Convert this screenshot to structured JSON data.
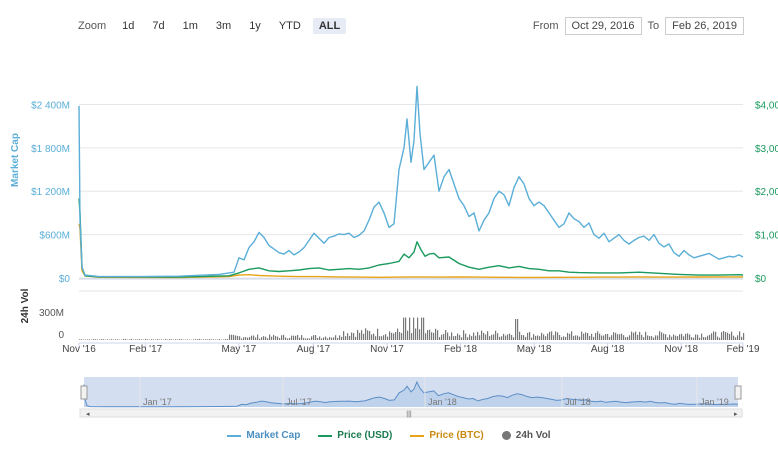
{
  "toolbar": {
    "zoom_label": "Zoom",
    "zoom_buttons": [
      "1d",
      "7d",
      "1m",
      "3m",
      "1y",
      "YTD",
      "ALL"
    ],
    "active": "ALL",
    "from_label": "From",
    "from_value": "Oct 29, 2016",
    "to_label": "To",
    "to_value": "Feb 26, 2019"
  },
  "colors": {
    "market_cap": "#5aaed8",
    "price_usd": "#1a9a5e",
    "price_btc": "#e8a419",
    "volume": "#777777",
    "navigator_fill": "#cfdaf0"
  },
  "chart_data": {
    "type": "line",
    "x_ticks": [
      "Nov '16",
      "Feb '17",
      "May '17",
      "Aug '17",
      "Nov '17",
      "Feb '18",
      "May '18",
      "Aug '18",
      "Nov '18",
      "Feb '19"
    ],
    "left_axis": {
      "label": "Market Cap",
      "ticks": [
        "$2 400M",
        "$1 800M",
        "$1 200M",
        "$600M",
        "$0"
      ],
      "range": [
        0,
        2600
      ]
    },
    "right_axis": {
      "ticks": [
        "$4,00",
        "$3,00",
        "$2,00",
        "$1,00",
        "$0"
      ]
    },
    "volume_axis": {
      "label": "24h Vol",
      "ticks": [
        "300M",
        "0"
      ]
    },
    "navigator_ticks": [
      "Jan '17",
      "Jul '17",
      "Jan '18",
      "Jul '18",
      "Jan '19"
    ],
    "series": [
      {
        "name": "Market Cap",
        "key": "market_cap",
        "points": [
          [
            0,
            2380
          ],
          [
            1,
            800
          ],
          [
            3,
            150
          ],
          [
            6,
            40
          ],
          [
            20,
            20
          ],
          [
            60,
            20
          ],
          [
            100,
            25
          ],
          [
            140,
            50
          ],
          [
            155,
            80
          ],
          [
            160,
            280
          ],
          [
            165,
            250
          ],
          [
            170,
            420
          ],
          [
            175,
            500
          ],
          [
            180,
            630
          ],
          [
            185,
            560
          ],
          [
            190,
            450
          ],
          [
            195,
            400
          ],
          [
            200,
            350
          ],
          [
            205,
            330
          ],
          [
            210,
            380
          ],
          [
            215,
            320
          ],
          [
            220,
            360
          ],
          [
            225,
            420
          ],
          [
            230,
            520
          ],
          [
            235,
            620
          ],
          [
            240,
            550
          ],
          [
            245,
            480
          ],
          [
            250,
            560
          ],
          [
            255,
            580
          ],
          [
            260,
            610
          ],
          [
            265,
            600
          ],
          [
            270,
            620
          ],
          [
            275,
            560
          ],
          [
            280,
            590
          ],
          [
            285,
            650
          ],
          [
            290,
            800
          ],
          [
            295,
            980
          ],
          [
            300,
            1050
          ],
          [
            305,
            900
          ],
          [
            310,
            700
          ],
          [
            315,
            750
          ],
          [
            320,
            1500
          ],
          [
            325,
            1800
          ],
          [
            328,
            2200
          ],
          [
            332,
            1600
          ],
          [
            335,
            1900
          ],
          [
            338,
            2650
          ],
          [
            341,
            2000
          ],
          [
            345,
            1500
          ],
          [
            350,
            1600
          ],
          [
            355,
            1700
          ],
          [
            360,
            1200
          ],
          [
            365,
            1400
          ],
          [
            370,
            1500
          ],
          [
            375,
            1300
          ],
          [
            380,
            1100
          ],
          [
            385,
            1000
          ],
          [
            390,
            850
          ],
          [
            395,
            900
          ],
          [
            400,
            650
          ],
          [
            405,
            800
          ],
          [
            410,
            900
          ],
          [
            415,
            1100
          ],
          [
            420,
            1200
          ],
          [
            425,
            1150
          ],
          [
            430,
            1000
          ],
          [
            435,
            1250
          ],
          [
            440,
            1400
          ],
          [
            445,
            1300
          ],
          [
            450,
            1100
          ],
          [
            455,
            1000
          ],
          [
            460,
            1050
          ],
          [
            465,
            1000
          ],
          [
            470,
            900
          ],
          [
            475,
            800
          ],
          [
            480,
            700
          ],
          [
            485,
            750
          ],
          [
            490,
            900
          ],
          [
            495,
            820
          ],
          [
            500,
            780
          ],
          [
            505,
            700
          ],
          [
            510,
            760
          ],
          [
            515,
            600
          ],
          [
            520,
            550
          ],
          [
            525,
            620
          ],
          [
            530,
            500
          ],
          [
            535,
            550
          ],
          [
            540,
            600
          ],
          [
            545,
            520
          ],
          [
            550,
            470
          ],
          [
            555,
            520
          ],
          [
            560,
            560
          ],
          [
            565,
            580
          ],
          [
            570,
            520
          ],
          [
            575,
            600
          ],
          [
            580,
            480
          ],
          [
            585,
            430
          ],
          [
            590,
            470
          ],
          [
            595,
            350
          ],
          [
            600,
            300
          ],
          [
            605,
            380
          ],
          [
            610,
            320
          ],
          [
            615,
            280
          ],
          [
            620,
            300
          ],
          [
            625,
            320
          ],
          [
            630,
            340
          ],
          [
            635,
            300
          ],
          [
            640,
            260
          ],
          [
            645,
            280
          ],
          [
            650,
            300
          ],
          [
            655,
            290
          ],
          [
            660,
            320
          ],
          [
            664,
            290
          ]
        ]
      },
      {
        "name": "Price (USD)",
        "key": "price_usd",
        "points": [
          [
            0,
            1100
          ],
          [
            1,
            900
          ],
          [
            3,
            150
          ],
          [
            6,
            30
          ],
          [
            20,
            15
          ],
          [
            100,
            12
          ],
          [
            150,
            30
          ],
          [
            160,
            70
          ],
          [
            170,
            120
          ],
          [
            180,
            140
          ],
          [
            190,
            100
          ],
          [
            200,
            90
          ],
          [
            210,
            100
          ],
          [
            220,
            110
          ],
          [
            230,
            130
          ],
          [
            240,
            140
          ],
          [
            250,
            110
          ],
          [
            260,
            120
          ],
          [
            270,
            130
          ],
          [
            280,
            120
          ],
          [
            290,
            140
          ],
          [
            300,
            180
          ],
          [
            310,
            200
          ],
          [
            320,
            230
          ],
          [
            325,
            330
          ],
          [
            330,
            280
          ],
          [
            335,
            360
          ],
          [
            338,
            500
          ],
          [
            342,
            390
          ],
          [
            346,
            300
          ],
          [
            350,
            330
          ],
          [
            355,
            340
          ],
          [
            360,
            280
          ],
          [
            370,
            290
          ],
          [
            380,
            200
          ],
          [
            390,
            150
          ],
          [
            400,
            120
          ],
          [
            410,
            150
          ],
          [
            420,
            170
          ],
          [
            430,
            140
          ],
          [
            440,
            160
          ],
          [
            450,
            130
          ],
          [
            460,
            120
          ],
          [
            470,
            100
          ],
          [
            480,
            100
          ],
          [
            490,
            80
          ],
          [
            500,
            75
          ],
          [
            520,
            70
          ],
          [
            540,
            70
          ],
          [
            560,
            80
          ],
          [
            580,
            65
          ],
          [
            600,
            50
          ],
          [
            620,
            40
          ],
          [
            640,
            40
          ],
          [
            660,
            45
          ],
          [
            664,
            42
          ]
        ]
      },
      {
        "name": "Price (BTC)",
        "key": "price_btc",
        "points": [
          [
            0,
            750
          ],
          [
            1,
            680
          ],
          [
            3,
            100
          ],
          [
            6,
            30
          ],
          [
            20,
            10
          ],
          [
            100,
            5
          ],
          [
            150,
            20
          ],
          [
            160,
            40
          ],
          [
            170,
            45
          ],
          [
            180,
            35
          ],
          [
            190,
            30
          ],
          [
            200,
            25
          ],
          [
            220,
            20
          ],
          [
            240,
            20
          ],
          [
            260,
            15
          ],
          [
            280,
            12
          ],
          [
            300,
            10
          ],
          [
            320,
            12
          ],
          [
            340,
            15
          ],
          [
            360,
            12
          ],
          [
            380,
            14
          ],
          [
            400,
            12
          ],
          [
            420,
            10
          ],
          [
            440,
            8
          ],
          [
            460,
            8
          ],
          [
            480,
            10
          ],
          [
            500,
            10
          ],
          [
            520,
            12
          ],
          [
            540,
            12
          ],
          [
            560,
            15
          ],
          [
            580,
            12
          ],
          [
            600,
            12
          ],
          [
            620,
            14
          ],
          [
            640,
            15
          ],
          [
            664,
            15
          ]
        ]
      }
    ],
    "volume_note": "24h Vol bars rise after May '17, peak near Jan '18, and remain elevated through Feb '19"
  },
  "legend": [
    "Market Cap",
    "Price (USD)",
    "Price (BTC)",
    "24h Vol"
  ]
}
